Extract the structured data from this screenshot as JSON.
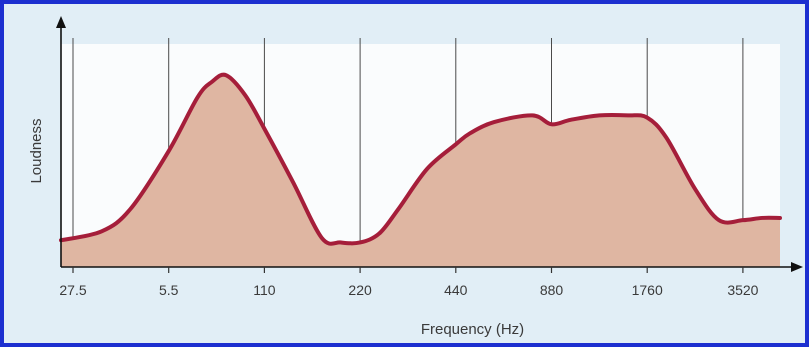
{
  "chart_data": {
    "type": "area",
    "title": "",
    "xlabel": "Frequency (Hz)",
    "ylabel": "Loudness",
    "x_tick_labels": [
      "27.5",
      "5.5",
      "110",
      "220",
      "440",
      "880",
      "1760",
      "3520"
    ],
    "x": [
      0.0,
      0.3,
      0.6,
      1.0,
      1.3,
      1.45,
      1.6,
      1.8,
      2.0,
      2.3,
      2.6,
      2.8,
      3.0,
      3.2,
      3.4,
      3.7,
      4.0,
      4.15,
      4.4,
      4.8,
      5.0,
      5.2,
      5.5,
      5.8,
      6.0,
      6.2,
      6.5,
      6.75,
      7.0,
      7.2,
      7.38
    ],
    "y": [
      0.12,
      0.16,
      0.26,
      0.52,
      0.76,
      0.83,
      0.86,
      0.77,
      0.62,
      0.38,
      0.13,
      0.11,
      0.11,
      0.15,
      0.26,
      0.44,
      0.55,
      0.6,
      0.65,
      0.68,
      0.64,
      0.66,
      0.68,
      0.68,
      0.67,
      0.58,
      0.35,
      0.21,
      0.21,
      0.22,
      0.22
    ],
    "xlim": [
      -0.1,
      7.38
    ],
    "ylim": [
      0,
      1
    ],
    "grid": "vertical",
    "fill_color": "#dfb6a2",
    "line_color": "#a51e3a",
    "plot_bg": "#fafcfd",
    "frame_bg": "#e1eef6",
    "border_color": "#1c2fd0"
  }
}
